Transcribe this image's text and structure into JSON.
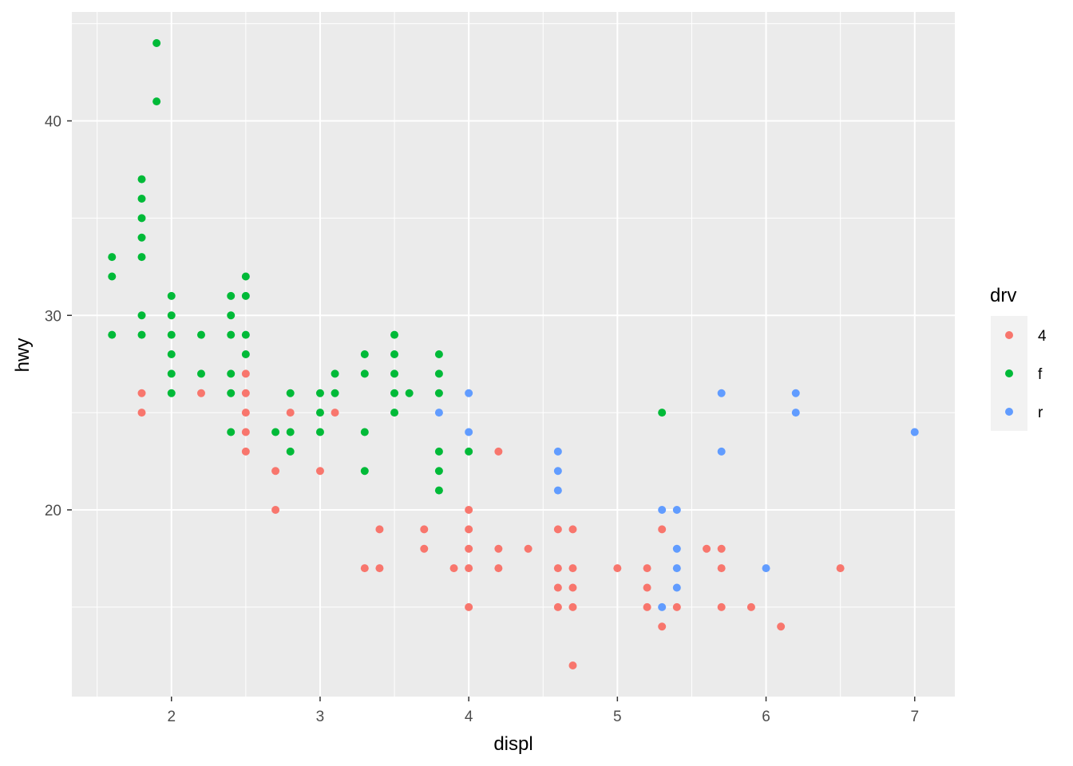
{
  "chart_data": {
    "type": "scatter",
    "title": "",
    "xlabel": "displ",
    "ylabel": "hwy",
    "xlim": [
      1.33,
      7.27
    ],
    "ylim": [
      10.4,
      45.6
    ],
    "x_ticks": [
      2,
      3,
      4,
      5,
      6,
      7
    ],
    "y_ticks": [
      20,
      30,
      40
    ],
    "grid": true,
    "panel_background": "#EBEBEB",
    "legend": {
      "title": "drv",
      "placement": "right",
      "entries": [
        {
          "label": "4",
          "color": "#F8766D"
        },
        {
          "label": "f",
          "color": "#00BA38"
        },
        {
          "label": "r",
          "color": "#619CFF"
        }
      ]
    },
    "series": [
      {
        "name": "4",
        "color": "#F8766D",
        "points": [
          [
            1.8,
            26
          ],
          [
            1.8,
            25
          ],
          [
            2.2,
            26
          ],
          [
            2.5,
            27
          ],
          [
            2.5,
            26
          ],
          [
            2.5,
            25
          ],
          [
            2.5,
            24
          ],
          [
            2.5,
            23
          ],
          [
            2.7,
            22
          ],
          [
            2.7,
            20
          ],
          [
            2.8,
            25
          ],
          [
            3.0,
            22
          ],
          [
            3.1,
            25
          ],
          [
            3.3,
            17
          ],
          [
            3.4,
            19
          ],
          [
            3.4,
            17
          ],
          [
            3.7,
            19
          ],
          [
            3.7,
            18
          ],
          [
            3.9,
            17
          ],
          [
            4.0,
            20
          ],
          [
            4.0,
            19
          ],
          [
            4.0,
            18
          ],
          [
            4.0,
            17
          ],
          [
            4.0,
            15
          ],
          [
            4.2,
            23
          ],
          [
            4.2,
            18
          ],
          [
            4.2,
            17
          ],
          [
            4.4,
            18
          ],
          [
            4.6,
            19
          ],
          [
            4.6,
            17
          ],
          [
            4.6,
            16
          ],
          [
            4.6,
            15
          ],
          [
            4.7,
            19
          ],
          [
            4.7,
            17
          ],
          [
            4.7,
            16
          ],
          [
            4.7,
            15
          ],
          [
            4.7,
            12
          ],
          [
            5.0,
            17
          ],
          [
            5.2,
            17
          ],
          [
            5.2,
            16
          ],
          [
            5.2,
            15
          ],
          [
            5.3,
            19
          ],
          [
            5.3,
            14
          ],
          [
            5.4,
            15
          ],
          [
            5.6,
            18
          ],
          [
            5.7,
            18
          ],
          [
            5.7,
            17
          ],
          [
            5.7,
            15
          ],
          [
            5.9,
            15
          ],
          [
            6.1,
            14
          ],
          [
            6.5,
            17
          ]
        ]
      },
      {
        "name": "f",
        "color": "#00BA38",
        "points": [
          [
            1.6,
            33
          ],
          [
            1.6,
            32
          ],
          [
            1.6,
            29
          ],
          [
            1.8,
            37
          ],
          [
            1.8,
            36
          ],
          [
            1.8,
            35
          ],
          [
            1.8,
            34
          ],
          [
            1.8,
            33
          ],
          [
            1.8,
            30
          ],
          [
            1.8,
            29
          ],
          [
            1.9,
            44
          ],
          [
            1.9,
            41
          ],
          [
            2.0,
            31
          ],
          [
            2.0,
            30
          ],
          [
            2.0,
            29
          ],
          [
            2.0,
            28
          ],
          [
            2.0,
            27
          ],
          [
            2.0,
            26
          ],
          [
            2.2,
            29
          ],
          [
            2.2,
            27
          ],
          [
            2.4,
            31
          ],
          [
            2.4,
            30
          ],
          [
            2.4,
            29
          ],
          [
            2.4,
            27
          ],
          [
            2.4,
            26
          ],
          [
            2.4,
            24
          ],
          [
            2.5,
            32
          ],
          [
            2.5,
            31
          ],
          [
            2.5,
            29
          ],
          [
            2.5,
            28
          ],
          [
            2.7,
            24
          ],
          [
            2.8,
            26
          ],
          [
            2.8,
            24
          ],
          [
            2.8,
            23
          ],
          [
            3.0,
            26
          ],
          [
            3.0,
            25
          ],
          [
            3.0,
            24
          ],
          [
            3.1,
            27
          ],
          [
            3.1,
            26
          ],
          [
            3.3,
            28
          ],
          [
            3.3,
            27
          ],
          [
            3.3,
            24
          ],
          [
            3.3,
            22
          ],
          [
            3.5,
            29
          ],
          [
            3.5,
            28
          ],
          [
            3.5,
            27
          ],
          [
            3.5,
            26
          ],
          [
            3.5,
            25
          ],
          [
            3.6,
            26
          ],
          [
            3.8,
            28
          ],
          [
            3.8,
            27
          ],
          [
            3.8,
            26
          ],
          [
            3.8,
            23
          ],
          [
            3.8,
            22
          ],
          [
            3.8,
            21
          ],
          [
            4.0,
            23
          ],
          [
            5.3,
            25
          ]
        ]
      },
      {
        "name": "r",
        "color": "#619CFF",
        "points": [
          [
            3.8,
            25
          ],
          [
            4.0,
            26
          ],
          [
            4.0,
            24
          ],
          [
            4.6,
            23
          ],
          [
            4.6,
            22
          ],
          [
            4.6,
            21
          ],
          [
            5.3,
            20
          ],
          [
            5.3,
            15
          ],
          [
            5.4,
            20
          ],
          [
            5.4,
            18
          ],
          [
            5.4,
            17
          ],
          [
            5.4,
            16
          ],
          [
            5.7,
            26
          ],
          [
            5.7,
            23
          ],
          [
            6.0,
            17
          ],
          [
            6.2,
            26
          ],
          [
            6.2,
            25
          ],
          [
            7.0,
            24
          ]
        ]
      }
    ]
  }
}
